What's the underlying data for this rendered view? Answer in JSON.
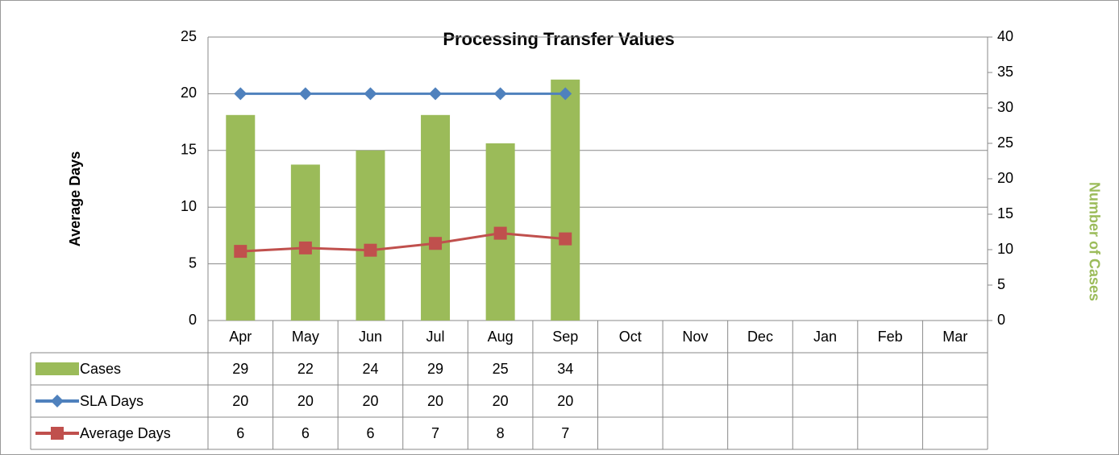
{
  "chart_data": {
    "type": "bar",
    "title": "Processing Transfer Values",
    "ylabel": "Average Days",
    "y2label": "Number of Cases",
    "categories": [
      "Apr",
      "May",
      "Jun",
      "Jul",
      "Aug",
      "Sep",
      "Oct",
      "Nov",
      "Dec",
      "Jan",
      "Feb",
      "Mar"
    ],
    "series": [
      {
        "name": "Cases",
        "type": "bar",
        "axis": "y2",
        "color": "#9bbb59",
        "values": [
          29,
          22,
          24,
          29,
          25,
          34,
          null,
          null,
          null,
          null,
          null,
          null
        ]
      },
      {
        "name": "SLA Days",
        "type": "line",
        "marker": "diamond",
        "color": "#4f81bd",
        "values": [
          20,
          20,
          20,
          20,
          20,
          20,
          null,
          null,
          null,
          null,
          null,
          null
        ]
      },
      {
        "name": "Average Days",
        "type": "line",
        "marker": "square",
        "color": "#c0504d",
        "values": [
          6.1,
          6.4,
          6.2,
          6.8,
          7.7,
          7.2,
          null,
          null,
          null,
          null,
          null,
          null
        ],
        "value_labels": [
          "6",
          "6",
          "6",
          "7",
          "8",
          "7",
          null,
          null,
          null,
          null,
          null,
          null
        ]
      }
    ],
    "ylim": [
      0,
      25
    ],
    "yticks": [
      0,
      5,
      10,
      15,
      20,
      25
    ],
    "y2lim": [
      0,
      40
    ],
    "y2ticks": [
      0,
      5,
      10,
      15,
      20,
      25,
      30,
      35,
      40
    ],
    "grid": true,
    "data_table": true
  }
}
